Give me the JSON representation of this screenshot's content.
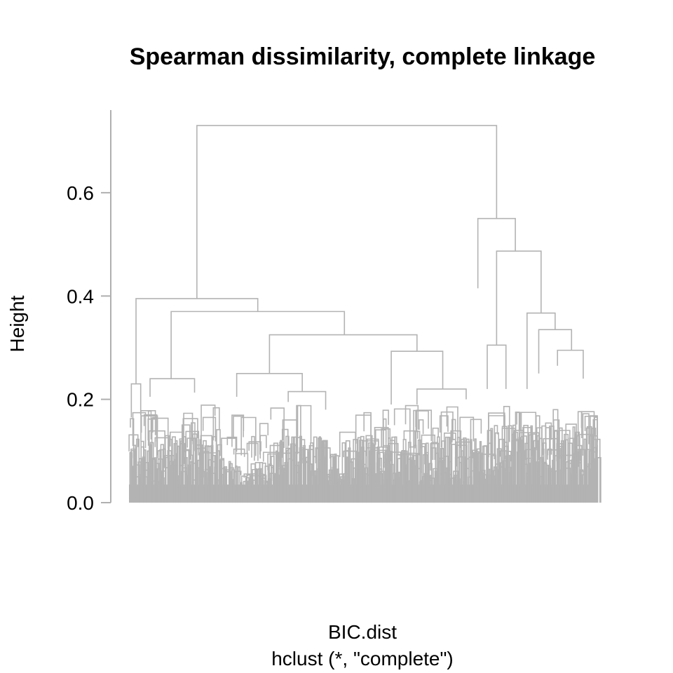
{
  "chart_data": {
    "type": "dendrogram",
    "title": "Spearman dissimilarity, complete linkage",
    "ylabel": "Height",
    "xlabel": "BIC.dist",
    "sublabel": "hclust (*, \"complete\")",
    "ylim": [
      0,
      0.76
    ],
    "yticks": [
      0.0,
      0.2,
      0.4,
      0.6
    ],
    "ytick_labels": [
      "0.0",
      "0.2",
      "0.4",
      "0.6"
    ],
    "line_color": "#b3b3b3",
    "leaf_extent": [
      0,
      1
    ],
    "merges": [
      {
        "height": 0.73,
        "left": 0.145,
        "right": 0.785,
        "left_height": 0.395,
        "right_height": 0.55
      },
      {
        "height": 0.55,
        "left": 0.745,
        "right": 0.825,
        "left_height": 0.415,
        "right_height": 0.487
      },
      {
        "height": 0.487,
        "left": 0.785,
        "right": 0.88,
        "left_height": 0.305,
        "right_height": 0.367
      },
      {
        "height": 0.367,
        "left": 0.85,
        "right": 0.91,
        "left_height": 0.22,
        "right_height": 0.335
      },
      {
        "height": 0.335,
        "left": 0.875,
        "right": 0.945,
        "left_height": 0.25,
        "right_height": 0.295
      },
      {
        "height": 0.305,
        "left": 0.765,
        "right": 0.805,
        "left_height": 0.22,
        "right_height": 0.22
      },
      {
        "height": 0.295,
        "left": 0.915,
        "right": 0.97,
        "left_height": 0.265,
        "right_height": 0.24
      },
      {
        "height": 0.395,
        "left": 0.015,
        "right": 0.275,
        "left_height": 0.23,
        "right_height": 0.37
      },
      {
        "height": 0.37,
        "left": 0.09,
        "right": 0.46,
        "left_height": 0.24,
        "right_height": 0.325
      },
      {
        "height": 0.325,
        "left": 0.3,
        "right": 0.615,
        "left_height": 0.25,
        "right_height": 0.293
      },
      {
        "height": 0.293,
        "left": 0.56,
        "right": 0.67,
        "left_height": 0.19,
        "right_height": 0.22
      },
      {
        "height": 0.25,
        "left": 0.23,
        "right": 0.37,
        "left_height": 0.205,
        "right_height": 0.215
      },
      {
        "height": 0.24,
        "left": 0.045,
        "right": 0.14,
        "left_height": 0.205,
        "right_height": 0.213
      },
      {
        "height": 0.23,
        "left": 0.005,
        "right": 0.025,
        "left_height": 0.165,
        "right_height": 0.17
      },
      {
        "height": 0.22,
        "left": 0.615,
        "right": 0.72,
        "left_height": 0.19,
        "right_height": 0.2
      },
      {
        "height": 0.215,
        "left": 0.34,
        "right": 0.42,
        "left_height": 0.195,
        "right_height": 0.18
      }
    ]
  }
}
